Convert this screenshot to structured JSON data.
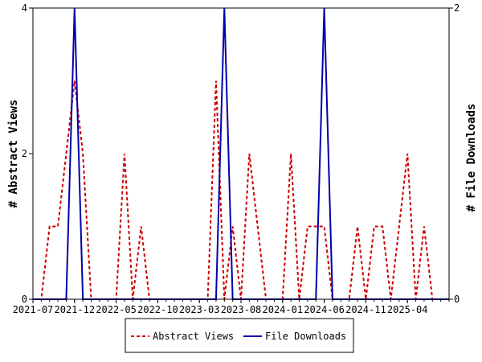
{
  "chart_data": {
    "type": "line",
    "title": "",
    "xlabel": "",
    "ylabel_left": "# Abstract Views",
    "ylabel_right": "# File Downloads",
    "x": [
      "2021-07",
      "2021-08",
      "2021-09",
      "2021-10",
      "2021-11",
      "2021-12",
      "2022-01",
      "2022-02",
      "2022-03",
      "2022-04",
      "2022-05",
      "2022-06",
      "2022-07",
      "2022-08",
      "2022-09",
      "2022-10",
      "2022-11",
      "2022-12",
      "2023-01",
      "2023-02",
      "2023-03",
      "2023-04",
      "2023-05",
      "2023-06",
      "2023-07",
      "2023-08",
      "2023-09",
      "2023-10",
      "2023-11",
      "2023-12",
      "2024-01",
      "2024-02",
      "2024-03",
      "2024-04",
      "2024-05",
      "2024-06",
      "2024-07",
      "2024-08",
      "2024-09",
      "2024-10",
      "2024-11",
      "2024-12",
      "2025-01",
      "2025-02",
      "2025-03",
      "2025-04",
      "2025-05",
      "2025-06",
      "2025-07",
      "2025-08",
      "2025-09"
    ],
    "x_tick_labels": [
      "2021-07",
      "2021-12",
      "2022-05",
      "2022-10",
      "2023-03",
      "2023-08",
      "2024-01",
      "2024-06",
      "2024-11",
      "2025-04"
    ],
    "y_left_ticks": [
      "0",
      "2",
      "4"
    ],
    "y_right_ticks": [
      "0",
      "2"
    ],
    "ylim_left": [
      0,
      4
    ],
    "ylim_right": [
      0,
      2
    ],
    "series": [
      {
        "name": "Abstract Views",
        "axis": "left",
        "color": "#cc0000",
        "dash": true,
        "values": [
          0,
          0,
          1,
          1,
          2,
          3,
          2,
          0,
          0,
          0,
          0,
          2,
          0,
          1,
          0,
          0,
          0,
          0,
          0,
          0,
          0,
          0,
          3,
          0,
          1,
          0,
          2,
          1,
          0,
          0,
          0,
          2,
          0,
          1,
          1,
          1,
          0,
          0,
          0,
          1,
          0,
          1,
          1,
          0,
          1,
          2,
          0,
          1,
          0,
          0,
          0
        ]
      },
      {
        "name": "File Downloads",
        "axis": "right",
        "color": "#0000aa",
        "dash": false,
        "values": [
          0,
          0,
          0,
          0,
          0,
          2,
          0,
          0,
          0,
          0,
          0,
          0,
          0,
          0,
          0,
          0,
          0,
          0,
          0,
          0,
          0,
          0,
          0,
          2,
          0,
          0,
          0,
          0,
          0,
          0,
          0,
          0,
          0,
          0,
          0,
          2,
          0,
          0,
          0,
          0,
          0,
          0,
          0,
          0,
          0,
          0,
          0,
          0,
          0,
          0,
          0
        ]
      }
    ],
    "grid": false,
    "legend_position": "bottom"
  }
}
